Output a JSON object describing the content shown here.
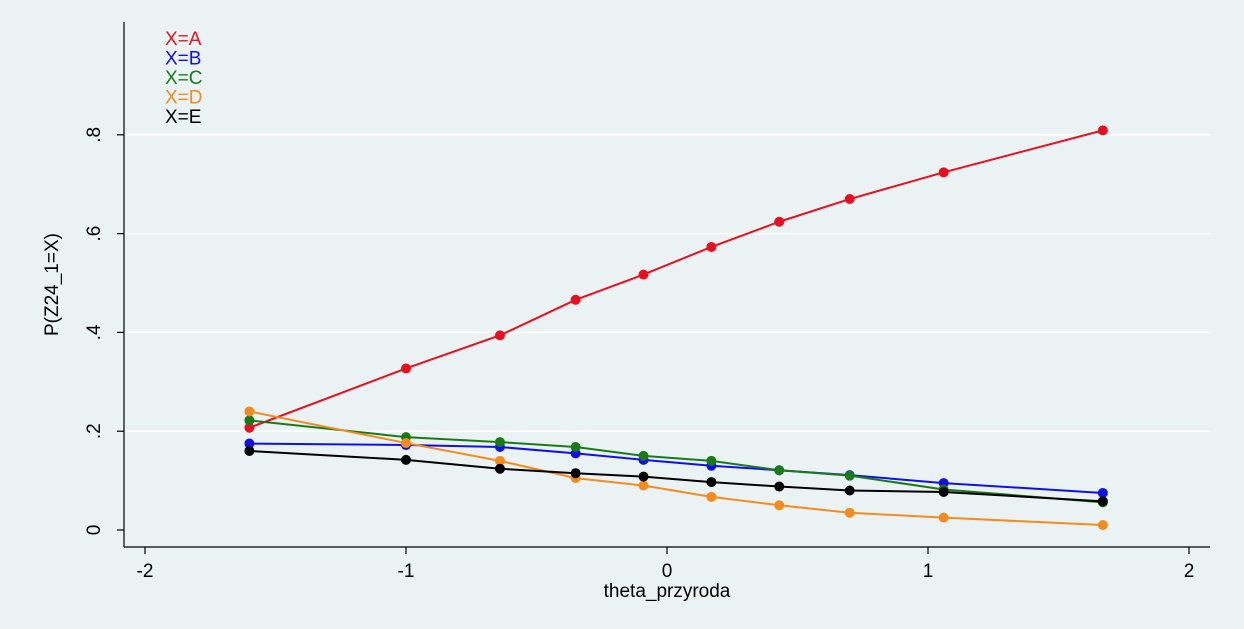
{
  "chart_data": {
    "type": "line",
    "xlabel": "theta_przyroda",
    "ylabel": "P(Z24_1=X)",
    "xlim": [
      -2,
      2
    ],
    "ylim": [
      0,
      1
    ],
    "xticks": [
      -2,
      -1,
      0,
      1,
      2
    ],
    "xtick_labels": [
      "-2",
      "-1",
      "0",
      "1",
      "2"
    ],
    "yticks": [
      0,
      0.2,
      0.4,
      0.6,
      0.8
    ],
    "ytick_labels": [
      "0",
      ".2",
      ".4",
      ".6",
      ".8"
    ],
    "grid": true,
    "legend_position": "top-left",
    "x": [
      -1.6,
      -1.0,
      -0.64,
      -0.35,
      -0.09,
      0.17,
      0.43,
      0.7,
      1.06,
      1.67
    ],
    "series": [
      {
        "name": "X=A",
        "color": "#e8101e",
        "values": [
          0.207,
          0.327,
          0.394,
          0.466,
          0.517,
          0.573,
          0.624,
          0.67,
          0.724,
          0.809
        ]
      },
      {
        "name": "X=B",
        "color": "#1010e6",
        "values": [
          0.175,
          0.172,
          0.168,
          0.155,
          0.142,
          0.13,
          0.121,
          0.111,
          0.095,
          0.075
        ]
      },
      {
        "name": "X=C",
        "color": "#1a7a1a",
        "values": [
          0.222,
          0.188,
          0.178,
          0.168,
          0.15,
          0.14,
          0.121,
          0.11,
          0.082,
          0.056
        ]
      },
      {
        "name": "X=D",
        "color": "#f28c1f",
        "values": [
          0.24,
          0.176,
          0.14,
          0.105,
          0.09,
          0.067,
          0.05,
          0.035,
          0.025,
          0.01
        ]
      },
      {
        "name": "X=E",
        "color": "#000000",
        "values": [
          0.16,
          0.142,
          0.124,
          0.115,
          0.108,
          0.097,
          0.088,
          0.08,
          0.077,
          0.058
        ]
      }
    ]
  }
}
